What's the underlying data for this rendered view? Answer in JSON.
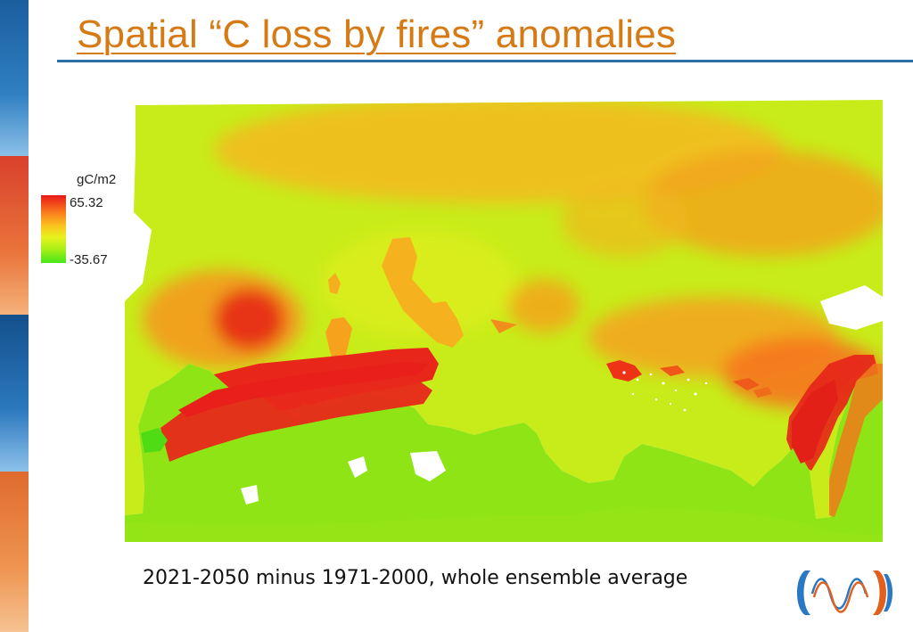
{
  "title": "Spatial “C loss by fires” anomalies",
  "legend": {
    "unit": "gC/m2",
    "max": "65.32",
    "min": "-35.67",
    "colors": [
      "#e8191a",
      "#f97a1c",
      "#fbc21e",
      "#e8f21e",
      "#a7ef16",
      "#46e61a"
    ]
  },
  "caption": "2021-2050 minus 1971-2000, whole ensemble average",
  "colors": {
    "title": "#d57a14",
    "rule": "#2a6ea8",
    "sea": "#ffffff"
  },
  "icons": {
    "logo": "wave-logo-icon"
  }
}
